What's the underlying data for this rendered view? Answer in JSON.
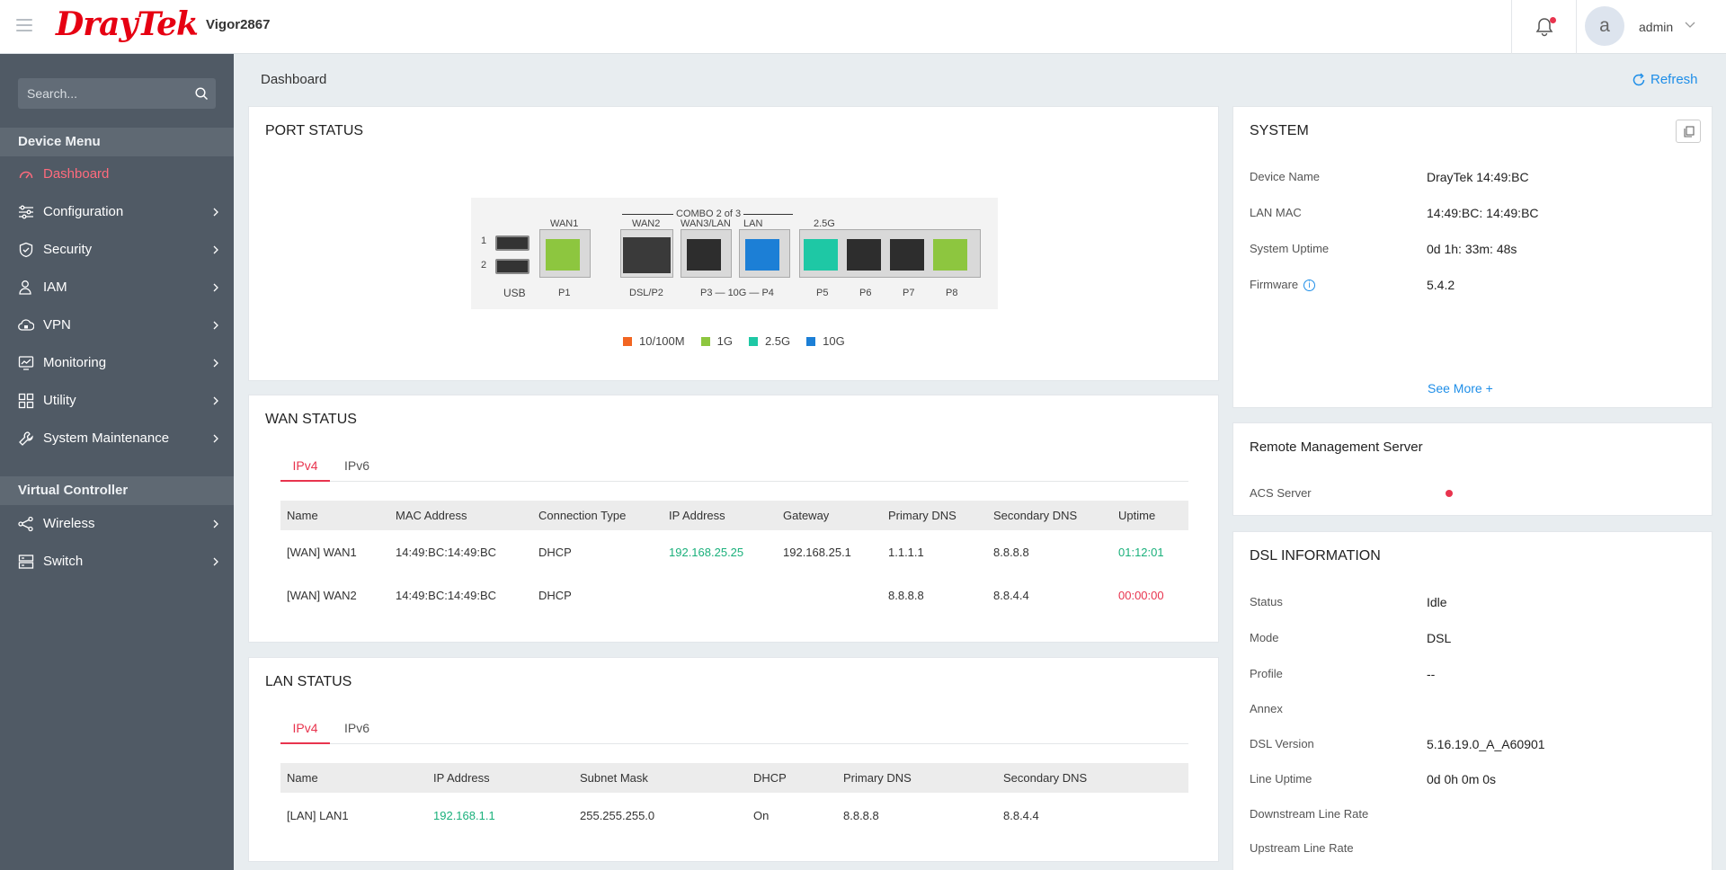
{
  "header": {
    "brand": "DrayTek",
    "model": "Vigor2867",
    "user_initial": "a",
    "username": "admin"
  },
  "sidebar": {
    "search_placeholder": "Search...",
    "sections": [
      "Device Menu",
      "Virtual Controller"
    ],
    "items": [
      {
        "label": "Dashboard",
        "icon": "gauge-icon"
      },
      {
        "label": "Configuration",
        "icon": "sliders-icon"
      },
      {
        "label": "Security",
        "icon": "shield-icon"
      },
      {
        "label": "IAM",
        "icon": "user-icon"
      },
      {
        "label": "VPN",
        "icon": "cloud-lock-icon"
      },
      {
        "label": "Monitoring",
        "icon": "monitor-icon"
      },
      {
        "label": "Utility",
        "icon": "grid-icon"
      },
      {
        "label": "System Maintenance",
        "icon": "wrench-icon"
      },
      {
        "label": "Wireless",
        "icon": "wireless-icon"
      },
      {
        "label": "Switch",
        "icon": "switch-icon"
      }
    ]
  },
  "breadcrumb": "Dashboard",
  "refresh_label": "Refresh",
  "colors": {
    "brand": "#e60012",
    "accent_red": "#e8344e",
    "link_blue": "#1e8ee8",
    "green": "#1ab07b",
    "sidebar_bg": "#505a65"
  },
  "port_status": {
    "title": "PORT STATUS",
    "labels": {
      "wan1": "WAN1",
      "combo": "COMBO 2 of 3",
      "wan2": "WAN2",
      "wan3lan": "WAN3/LAN",
      "lan": "LAN",
      "g25": "2.5G",
      "usb": "USB",
      "p1": "P1",
      "dslp2": "DSL/P2",
      "p34": "P3 — 10G — P4",
      "p5": "P5",
      "p6": "P6",
      "p7": "P7",
      "p8": "P8",
      "usb1": "1",
      "usb2": "2"
    },
    "legend": [
      {
        "label": "10/100M",
        "color": "#f26522"
      },
      {
        "label": "1G",
        "color": "#8dc63f"
      },
      {
        "label": "2.5G",
        "color": "#1ec8a5"
      },
      {
        "label": "10G",
        "color": "#1c7fd6"
      }
    ]
  },
  "wan_status": {
    "title": "WAN STATUS",
    "tabs": [
      "IPv4",
      "IPv6"
    ],
    "columns": [
      "Name",
      "MAC Address",
      "Connection Type",
      "IP Address",
      "Gateway",
      "Primary DNS",
      "Secondary DNS",
      "Uptime"
    ],
    "rows": [
      [
        "[WAN] WAN1",
        "14:49:BC:14:49:BC",
        "DHCP",
        "192.168.25.25",
        "192.168.25.1",
        "1.1.1.1",
        "8.8.8.8",
        "01:12:01"
      ],
      [
        "[WAN] WAN2",
        "14:49:BC:14:49:BC",
        "DHCP",
        "",
        "",
        "8.8.8.8",
        "8.8.4.4",
        "00:00:00"
      ]
    ]
  },
  "lan_status": {
    "title": "LAN STATUS",
    "tabs": [
      "IPv4",
      "IPv6"
    ],
    "columns": [
      "Name",
      "IP Address",
      "Subnet Mask",
      "DHCP",
      "Primary DNS",
      "Secondary DNS"
    ],
    "rows": [
      [
        "[LAN] LAN1",
        "192.168.1.1",
        "255.255.255.0",
        "On",
        "8.8.8.8",
        "8.8.4.4"
      ]
    ]
  },
  "system": {
    "title": "SYSTEM",
    "rows": [
      {
        "k": "Device Name",
        "v": "DrayTek 14:49:BC"
      },
      {
        "k": "LAN MAC",
        "v": "14:49:BC: 14:49:BC"
      },
      {
        "k": "System Uptime",
        "v": "0d 1h: 33m: 48s"
      },
      {
        "k": "Firmware",
        "v": "5.4.2"
      }
    ],
    "see_more": "See More"
  },
  "remote_mgmt": {
    "title": "Remote Management Server",
    "acs_label": "ACS Server",
    "acs_status": "red"
  },
  "dsl": {
    "title": "DSL INFORMATION",
    "rows": [
      {
        "k": "Status",
        "v": "Idle"
      },
      {
        "k": "Mode",
        "v": "DSL"
      },
      {
        "k": "Profile",
        "v": "--"
      },
      {
        "k": "Annex",
        "v": ""
      },
      {
        "k": "DSL Version",
        "v": "5.16.19.0_A_A60901"
      },
      {
        "k": "Line Uptime",
        "v": "0d 0h 0m 0s"
      },
      {
        "k": "Downstream Line Rate",
        "v": ""
      },
      {
        "k": "Upstream Line Rate",
        "v": ""
      }
    ]
  }
}
